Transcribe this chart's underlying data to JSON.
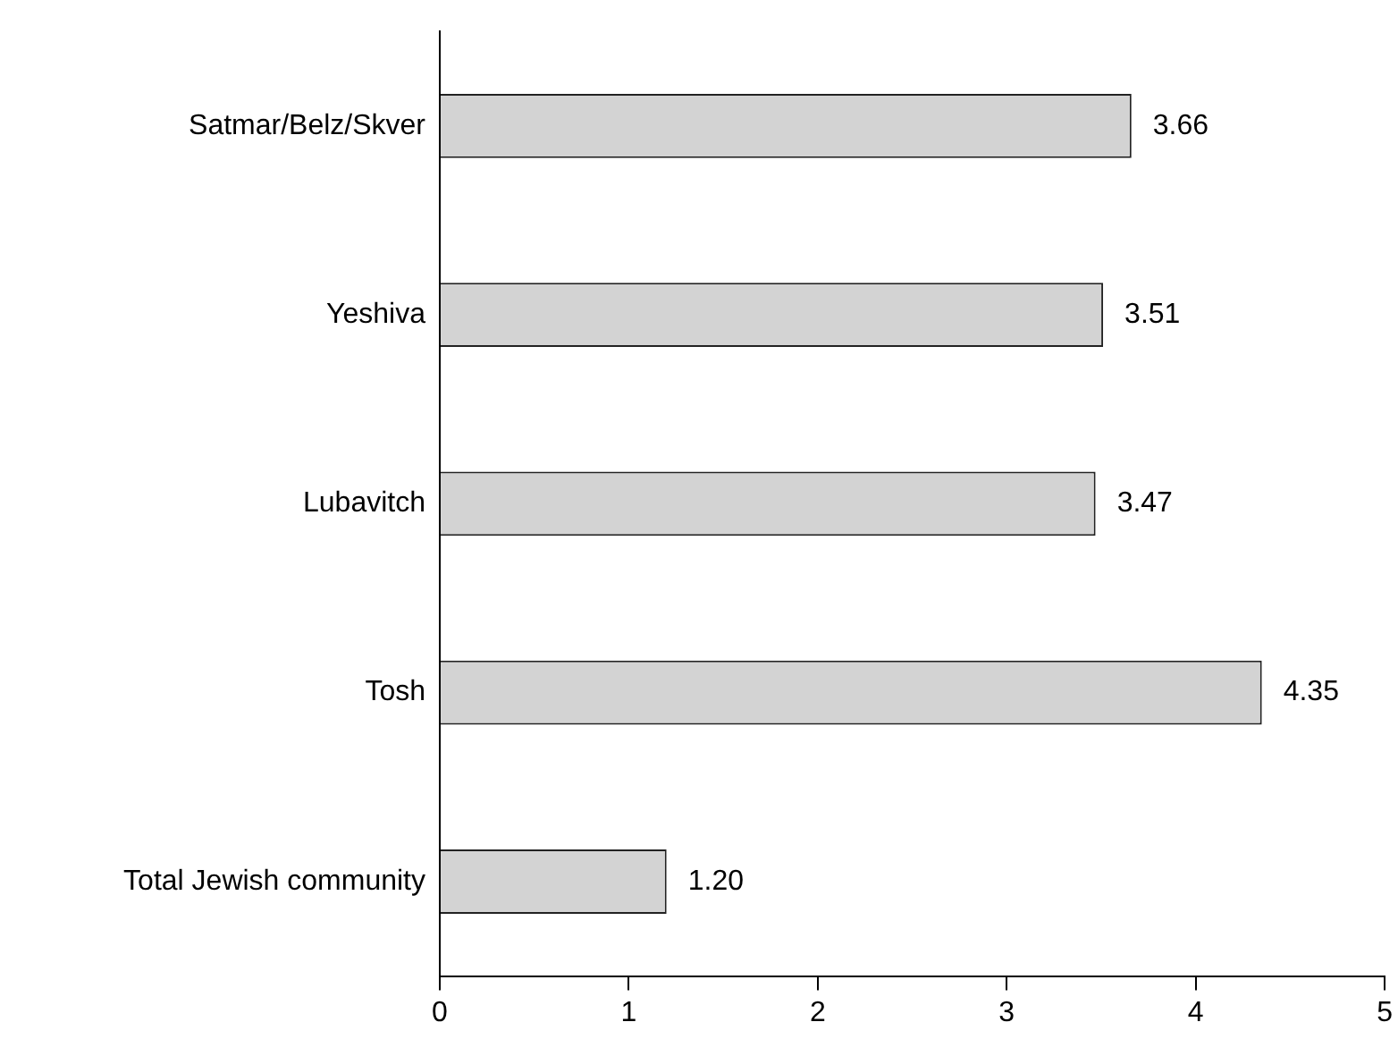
{
  "chart_data": {
    "type": "bar",
    "orientation": "horizontal",
    "categories": [
      "Satmar/Belz/Skver",
      "Yeshiva",
      "Lubavitch",
      "Tosh",
      "Total Jewish community"
    ],
    "values": [
      3.66,
      3.51,
      3.47,
      4.35,
      1.2
    ],
    "value_labels": [
      "3.66",
      "3.51",
      "3.47",
      "4.35",
      "1.20"
    ],
    "color": "#d3d3d3",
    "xlim": [
      0,
      5
    ],
    "xticks": [
      0,
      1,
      2,
      3,
      4,
      5
    ],
    "grid": false,
    "legend": false
  }
}
